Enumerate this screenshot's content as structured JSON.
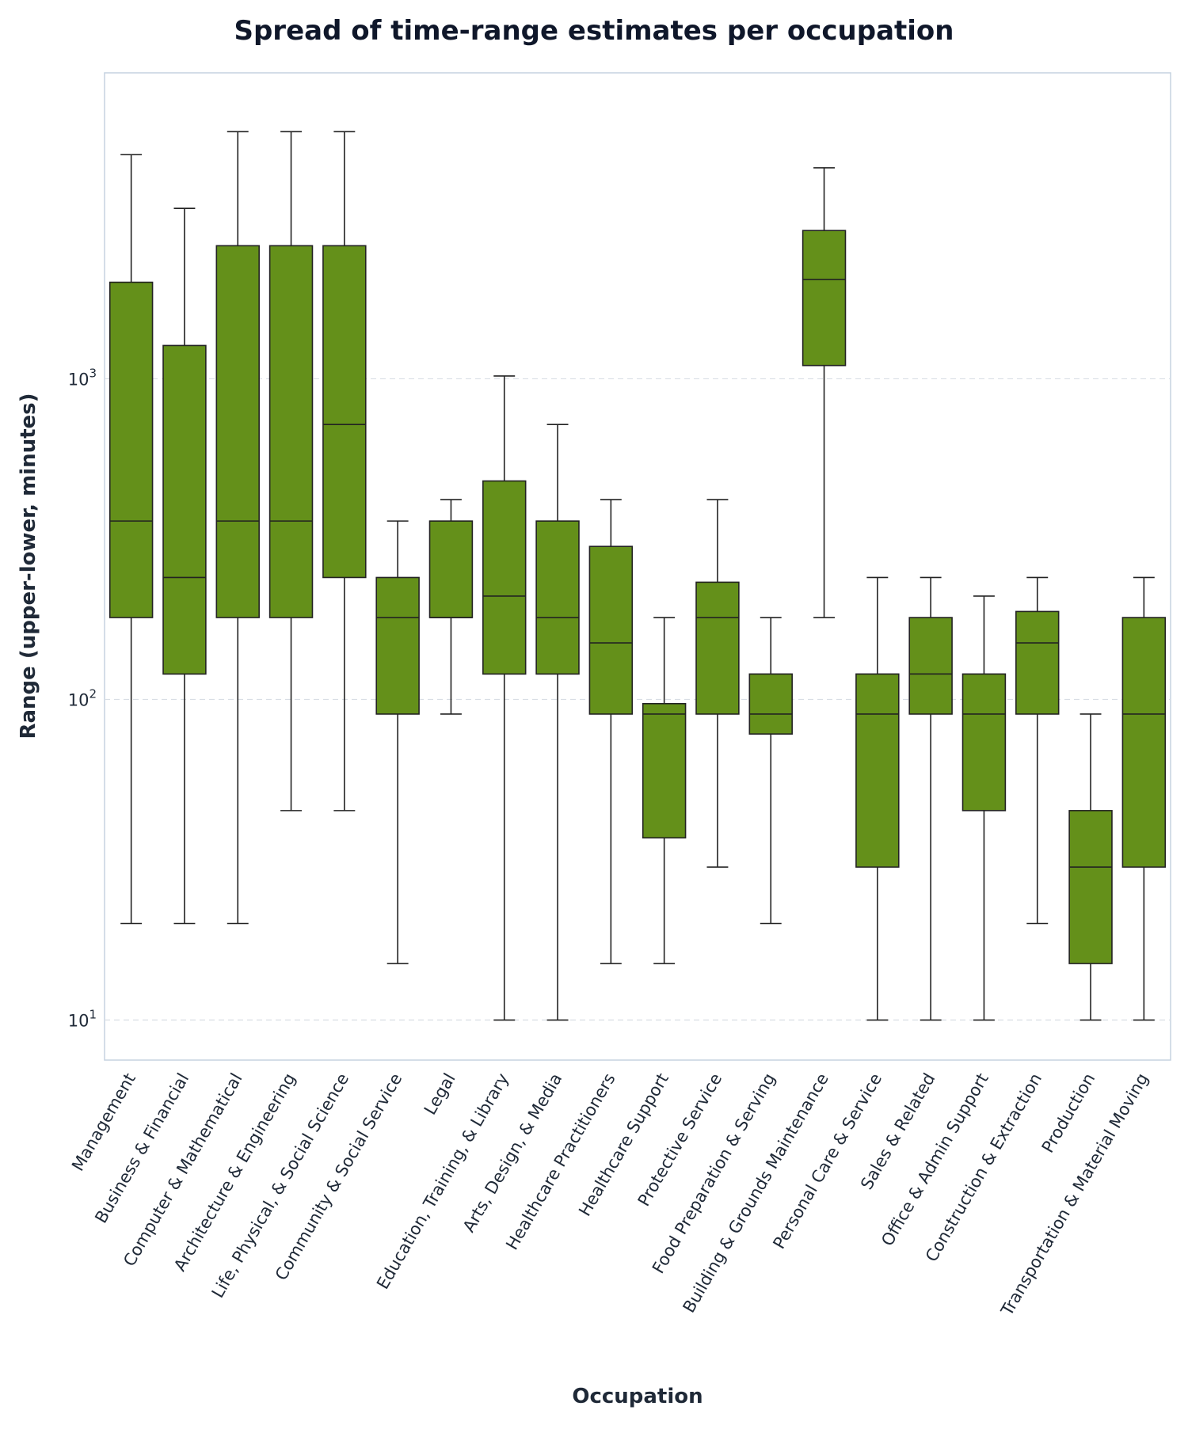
{
  "chart_data": {
    "type": "box",
    "title": "Spread of time-range estimates per occupation",
    "xlabel": "Occupation",
    "ylabel": "Range (upper-lower, minutes)",
    "yscale": "log",
    "ylim": [
      7.5,
      9000
    ],
    "yticks": [
      {
        "value": 10,
        "base": "10",
        "exp": "1"
      },
      {
        "value": 100,
        "base": "10",
        "exp": "2"
      },
      {
        "value": 1000,
        "base": "10",
        "exp": "3"
      }
    ],
    "grid": true,
    "box_color": "#64901a",
    "edge_color": "#222222",
    "categories": [
      "Management",
      "Business & Financial",
      "Computer & Mathematical",
      "Architecture & Engineering",
      "Life, Physical, & Social Science",
      "Community & Social Service",
      "Legal",
      "Education, Training, & Library",
      "Arts, Design, & Media",
      "Healthcare Practitioners",
      "Healthcare Support",
      "Protective Service",
      "Food Preparation & Serving",
      "Building & Grounds Maintenance",
      "Personal Care & Service",
      "Sales & Related",
      "Office & Admin Support",
      "Construction & Extraction",
      "Production",
      "Transportation & Material Moving"
    ],
    "boxes": [
      {
        "whislo": 20,
        "q1": 180,
        "median": 360,
        "q3": 2000,
        "whishi": 5000
      },
      {
        "whislo": 20,
        "q1": 120,
        "median": 240,
        "q3": 1270,
        "whishi": 3400
      },
      {
        "whislo": 20,
        "q1": 180,
        "median": 360,
        "q3": 2600,
        "whishi": 5900
      },
      {
        "whislo": 45,
        "q1": 180,
        "median": 360,
        "q3": 2600,
        "whishi": 5900
      },
      {
        "whislo": 45,
        "q1": 240,
        "median": 720,
        "q3": 2600,
        "whishi": 5900
      },
      {
        "whislo": 15,
        "q1": 90,
        "median": 180,
        "q3": 240,
        "whishi": 360
      },
      {
        "whislo": 90,
        "q1": 180,
        "median": 180,
        "q3": 360,
        "whishi": 420
      },
      {
        "whislo": 10,
        "q1": 120,
        "median": 210,
        "q3": 480,
        "whishi": 1020
      },
      {
        "whislo": 10,
        "q1": 120,
        "median": 180,
        "q3": 360,
        "whishi": 720
      },
      {
        "whislo": 15,
        "q1": 90,
        "median": 150,
        "q3": 300,
        "whishi": 420
      },
      {
        "whislo": 15,
        "q1": 37,
        "median": 90,
        "q3": 97,
        "whishi": 180
      },
      {
        "whislo": 30,
        "q1": 90,
        "median": 180,
        "q3": 232,
        "whishi": 420
      },
      {
        "whislo": 20,
        "q1": 78,
        "median": 90,
        "q3": 120,
        "whishi": 180
      },
      {
        "whislo": 180,
        "q1": 1100,
        "median": 2040,
        "q3": 2900,
        "whishi": 4550
      },
      {
        "whislo": 10,
        "q1": 30,
        "median": 90,
        "q3": 120,
        "whishi": 240
      },
      {
        "whislo": 10,
        "q1": 90,
        "median": 120,
        "q3": 180,
        "whishi": 240
      },
      {
        "whislo": 10,
        "q1": 45,
        "median": 90,
        "q3": 120,
        "whishi": 210
      },
      {
        "whislo": 20,
        "q1": 90,
        "median": 150,
        "q3": 188,
        "whishi": 240
      },
      {
        "whislo": 10,
        "q1": 15,
        "median": 30,
        "q3": 45,
        "whishi": 90
      },
      {
        "whislo": 10,
        "q1": 30,
        "median": 90,
        "q3": 180,
        "whishi": 240
      }
    ]
  }
}
